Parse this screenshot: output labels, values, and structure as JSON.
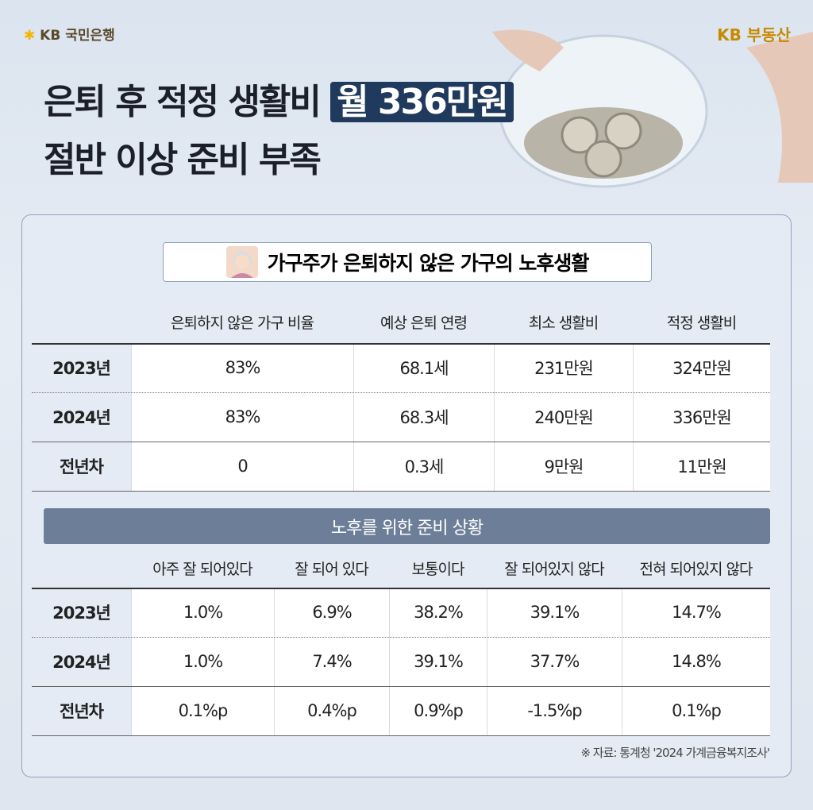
{
  "header": {
    "bank_logo": "KB 국민은행",
    "brand_logo": "KB 부동산"
  },
  "title": {
    "line1": "은퇴 후 적정 생활비",
    "highlight": "월 336만원",
    "line2": "절반 이상 준비 부족"
  },
  "table1": {
    "section_title": "가구주가 은퇴하지 않은 가구의 노후생활",
    "columns": [
      "은퇴하지 않은 가구 비율",
      "예상 은퇴 연령",
      "최소 생활비",
      "적정 생활비"
    ],
    "rows": [
      [
        "2023년",
        "83%",
        "68.1세",
        "231만원",
        "324만원"
      ],
      [
        "2024년",
        "83%",
        "68.3세",
        "240만원",
        "336만원"
      ],
      [
        "전년차",
        "0",
        "0.3세",
        "9만원",
        "11만원"
      ]
    ]
  },
  "table2": {
    "section_title": "노후를 위한 준비 상황",
    "columns": [
      "아주 잘 되어있다",
      "잘 되어 있다",
      "보통이다",
      "잘 되어있지 않다",
      "전혀 되어있지 않다"
    ],
    "rows": [
      [
        "2023년",
        "1.0%",
        "6.9%",
        "38.2%",
        "39.1%",
        "14.7%"
      ],
      [
        "2024년",
        "1.0%",
        "7.4%",
        "39.1%",
        "37.7%",
        "14.8%"
      ],
      [
        "전년차",
        "0.1%p",
        "0.4%p",
        "0.9%p",
        "-1.5%p",
        "0.1%p"
      ]
    ]
  },
  "source": "※ 자료: 통계청 '2024 가계금융복지조사'"
}
